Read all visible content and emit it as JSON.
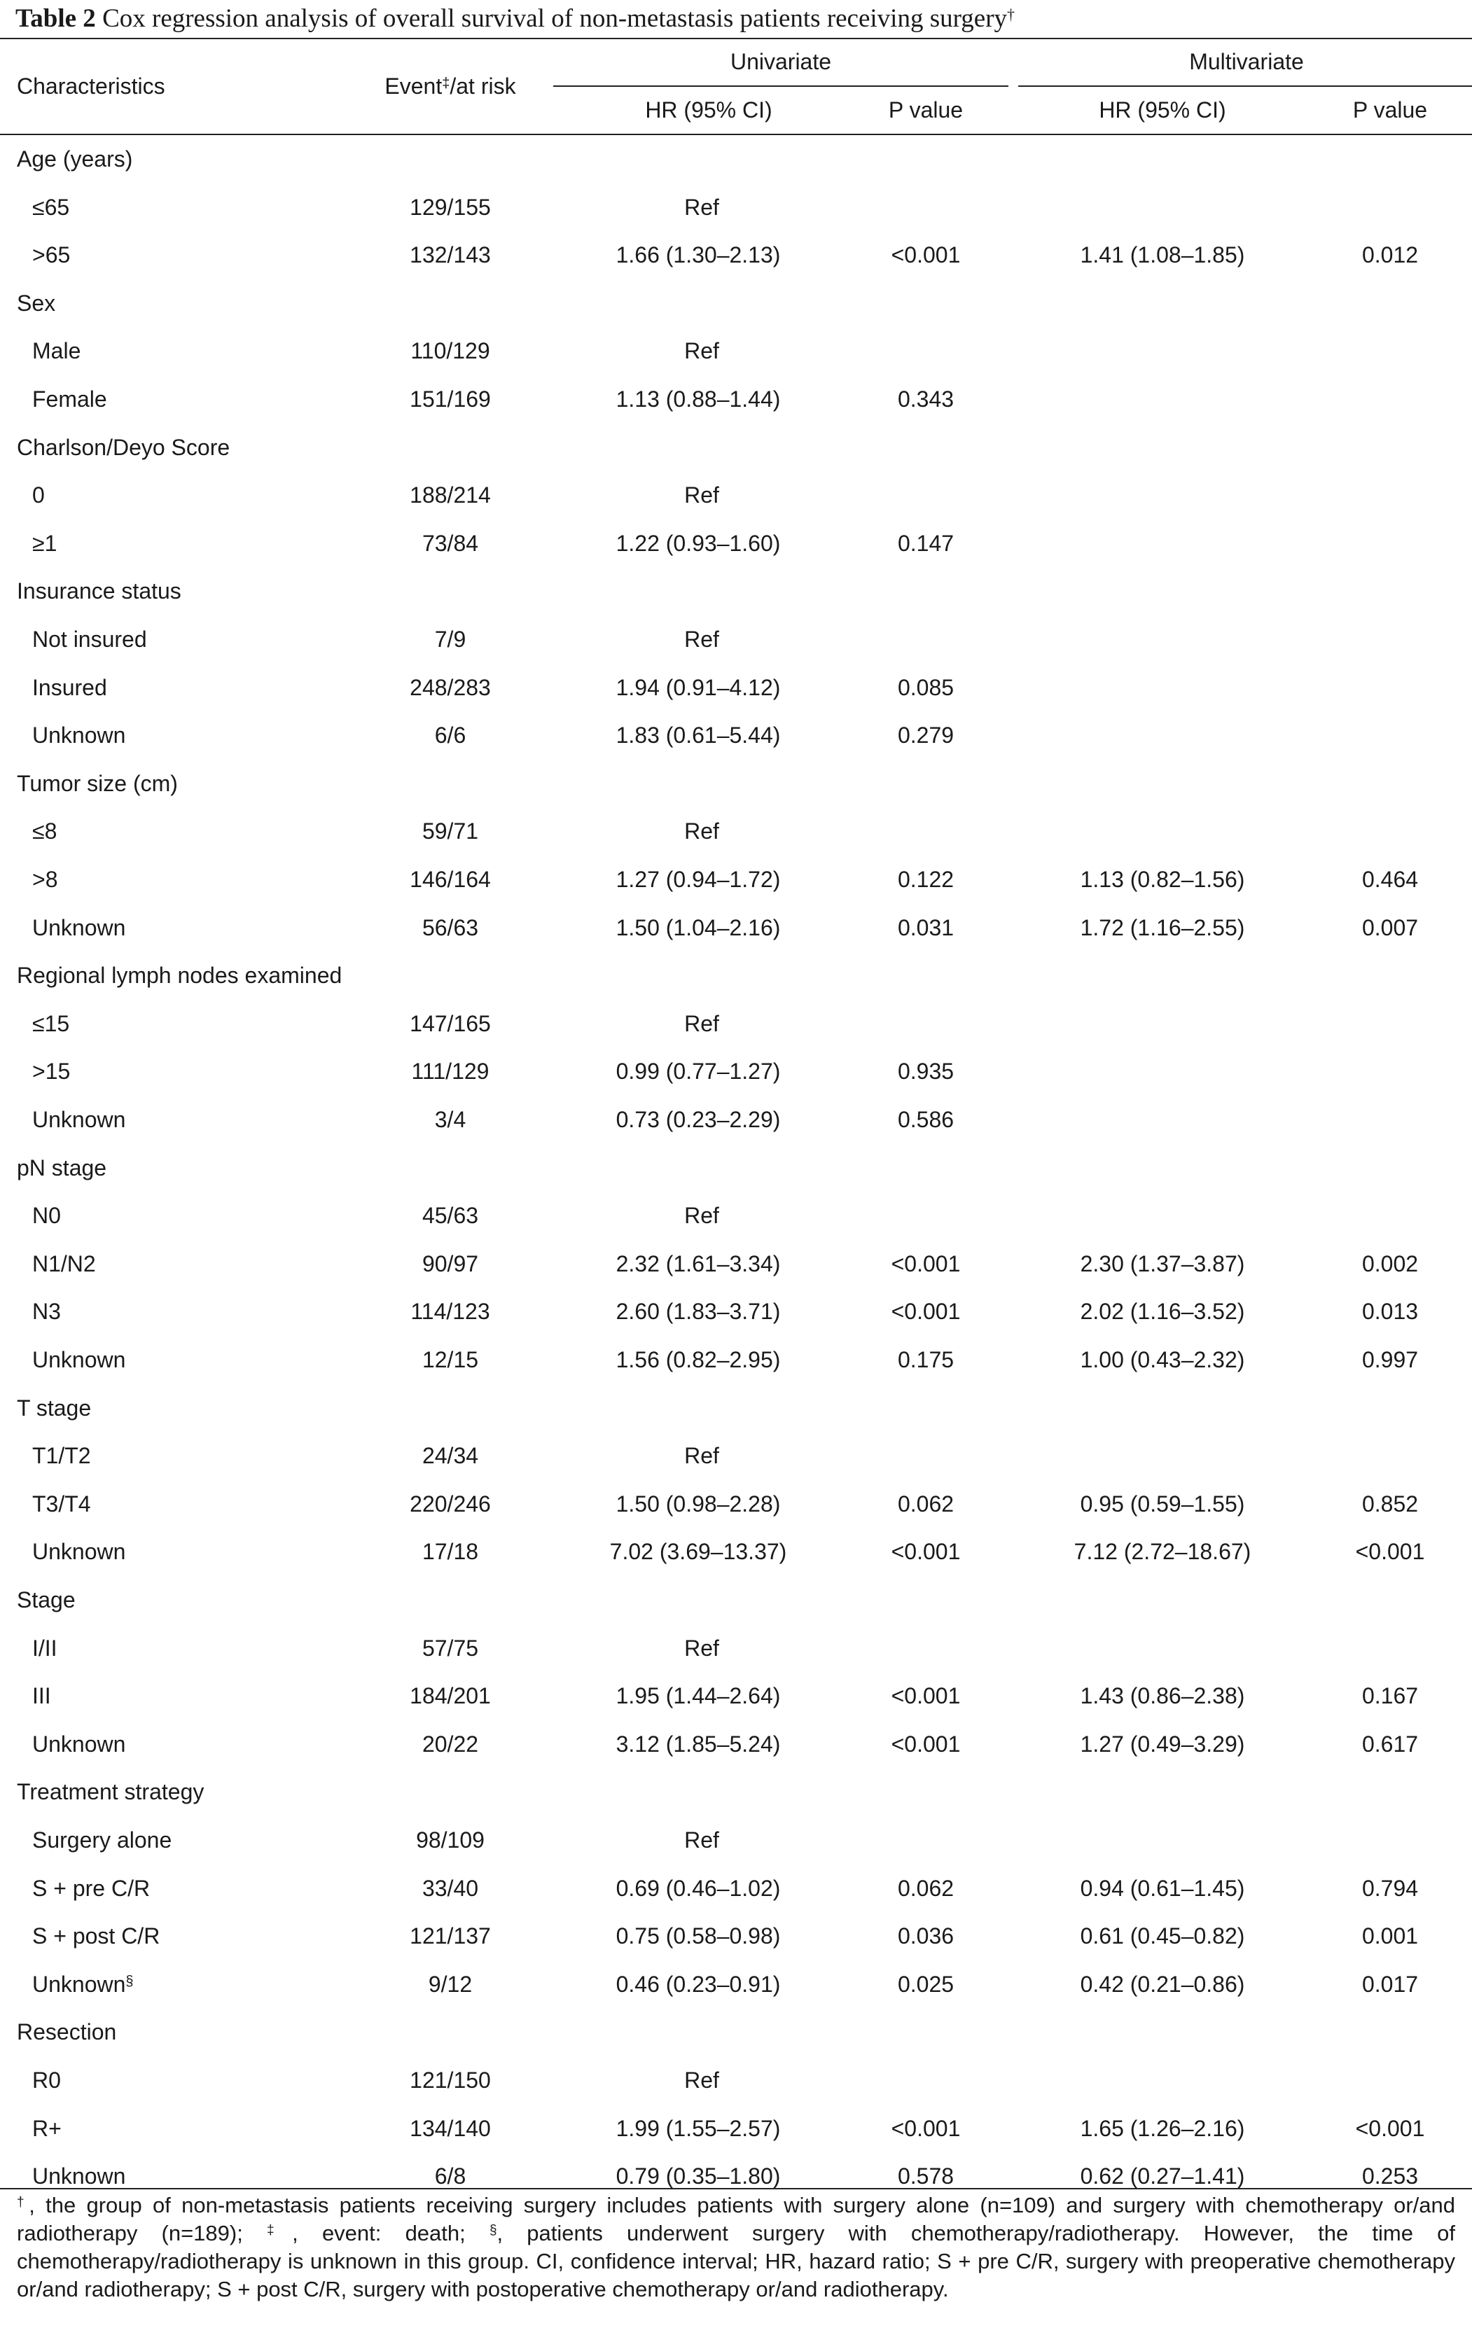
{
  "caption": {
    "label": "Table 2",
    "text": "Cox regression analysis of overall survival of non-metastasis patients receiving surgery",
    "mark": "†"
  },
  "headers": {
    "characteristics": "Characteristics",
    "event_pre": "Event",
    "event_mark": "‡",
    "event_post": "/at risk",
    "univariate": "Univariate",
    "multivariate": "Multivariate",
    "hr": "HR (95% CI)",
    "p": "P value"
  },
  "rows": [
    {
      "label": "Age (years)",
      "group": true
    },
    {
      "label": "≤65",
      "event": "129/155",
      "uhr": "Ref"
    },
    {
      "label": ">65",
      "event": "132/143",
      "uhr": "1.66 (1.30–2.13)",
      "up": "<0.001",
      "mhr": "1.41 (1.08–1.85)",
      "mp": "0.012"
    },
    {
      "label": "Sex",
      "group": true
    },
    {
      "label": "Male",
      "event": "110/129",
      "uhr": "Ref"
    },
    {
      "label": "Female",
      "event": "151/169",
      "uhr": "1.13 (0.88–1.44)",
      "up": "0.343"
    },
    {
      "label": "Charlson/Deyo Score",
      "group": true
    },
    {
      "label": "0",
      "event": "188/214",
      "uhr": "Ref"
    },
    {
      "label": "≥1",
      "event": "73/84",
      "uhr": "1.22 (0.93–1.60)",
      "up": "0.147"
    },
    {
      "label": "Insurance status",
      "group": true
    },
    {
      "label": "Not insured",
      "event": "7/9",
      "uhr": "Ref"
    },
    {
      "label": "Insured",
      "event": "248/283",
      "uhr": "1.94 (0.91–4.12)",
      "up": "0.085"
    },
    {
      "label": "Unknown",
      "event": "6/6",
      "uhr": "1.83 (0.61–5.44)",
      "up": "0.279"
    },
    {
      "label": "Tumor size (cm)",
      "group": true
    },
    {
      "label": "≤8",
      "event": "59/71",
      "uhr": "Ref"
    },
    {
      "label": ">8",
      "event": "146/164",
      "uhr": "1.27 (0.94–1.72)",
      "up": "0.122",
      "mhr": "1.13 (0.82–1.56)",
      "mp": "0.464"
    },
    {
      "label": "Unknown",
      "event": "56/63",
      "uhr": "1.50 (1.04–2.16)",
      "up": "0.031",
      "mhr": "1.72 (1.16–2.55)",
      "mp": "0.007"
    },
    {
      "label": "Regional lymph nodes examined",
      "group": true
    },
    {
      "label": "≤15",
      "event": "147/165",
      "uhr": "Ref"
    },
    {
      "label": ">15",
      "event": "111/129",
      "uhr": "0.99 (0.77–1.27)",
      "up": "0.935"
    },
    {
      "label": "Unknown",
      "event": "3/4",
      "uhr": "0.73 (0.23–2.29)",
      "up": "0.586"
    },
    {
      "label": "pN stage",
      "group": true
    },
    {
      "label": "N0",
      "event": "45/63",
      "uhr": "Ref"
    },
    {
      "label": "N1/N2",
      "event": "90/97",
      "uhr": "2.32 (1.61–3.34)",
      "up": "<0.001",
      "mhr": "2.30 (1.37–3.87)",
      "mp": "0.002"
    },
    {
      "label": "N3",
      "event": "114/123",
      "uhr": "2.60 (1.83–3.71)",
      "up": "<0.001",
      "mhr": "2.02 (1.16–3.52)",
      "mp": "0.013"
    },
    {
      "label": "Unknown",
      "event": "12/15",
      "uhr": "1.56 (0.82–2.95)",
      "up": "0.175",
      "mhr": "1.00 (0.43–2.32)",
      "mp": "0.997"
    },
    {
      "label": "T stage",
      "group": true
    },
    {
      "label": "T1/T2",
      "event": "24/34",
      "uhr": "Ref"
    },
    {
      "label": "T3/T4",
      "event": "220/246",
      "uhr": "1.50 (0.98–2.28)",
      "up": "0.062",
      "mhr": "0.95 (0.59–1.55)",
      "mp": "0.852"
    },
    {
      "label": "Unknown",
      "event": "17/18",
      "uhr": "7.02 (3.69–13.37)",
      "up": "<0.001",
      "mhr": "7.12 (2.72–18.67)",
      "mp": "<0.001"
    },
    {
      "label": "Stage",
      "group": true
    },
    {
      "label": "I/II",
      "event": "57/75",
      "uhr": "Ref"
    },
    {
      "label": "III",
      "event": "184/201",
      "uhr": "1.95 (1.44–2.64)",
      "up": "<0.001",
      "mhr": "1.43 (0.86–2.38)",
      "mp": "0.167"
    },
    {
      "label": "Unknown",
      "event": "20/22",
      "uhr": "3.12 (1.85–5.24)",
      "up": "<0.001",
      "mhr": "1.27 (0.49–3.29)",
      "mp": "0.617"
    },
    {
      "label": "Treatment strategy",
      "group": true
    },
    {
      "label": "Surgery alone",
      "event": "98/109",
      "uhr": "Ref"
    },
    {
      "label": "S + pre C/R",
      "event": "33/40",
      "uhr": "0.69 (0.46–1.02)",
      "up": "0.062",
      "mhr": "0.94 (0.61–1.45)",
      "mp": "0.794"
    },
    {
      "label": "S + post C/R",
      "event": "121/137",
      "uhr": "0.75 (0.58–0.98)",
      "up": "0.036",
      "mhr": "0.61 (0.45–0.82)",
      "mp": "0.001"
    },
    {
      "label": "Unknown",
      "mark": "§",
      "event": "9/12",
      "uhr": "0.46 (0.23–0.91)",
      "up": "0.025",
      "mhr": "0.42 (0.21–0.86)",
      "mp": "0.017"
    },
    {
      "label": "Resection",
      "group": true
    },
    {
      "label": "R0",
      "event": "121/150",
      "uhr": "Ref"
    },
    {
      "label": "R+",
      "event": "134/140",
      "uhr": "1.99 (1.55–2.57)",
      "up": "<0.001",
      "mhr": "1.65 (1.26–2.16)",
      "mp": "<0.001"
    },
    {
      "label": "Unknown",
      "event": "6/8",
      "uhr": "0.79 (0.35–1.80)",
      "up": "0.578",
      "mhr": "0.62 (0.27–1.41)",
      "mp": "0.253"
    }
  ],
  "footnote": [
    {
      "mark": "†",
      "text": ", the group of non-metastasis patients receiving surgery includes patients with surgery alone (n=109) and surgery with chemotherapy or/and radiotherapy (n=189); "
    },
    {
      "mark": "‡",
      "text": ", event: death; "
    },
    {
      "mark": "§",
      "text": ", patients underwent surgery with chemotherapy/radiotherapy. However, the time of chemotherapy/radiotherapy is unknown in this group. CI, confidence interval; HR, hazard ratio; S + pre C/R, surgery with preoperative chemotherapy or/and radiotherapy; S + post C/R, surgery with postoperative chemotherapy or/and radiotherapy."
    }
  ]
}
